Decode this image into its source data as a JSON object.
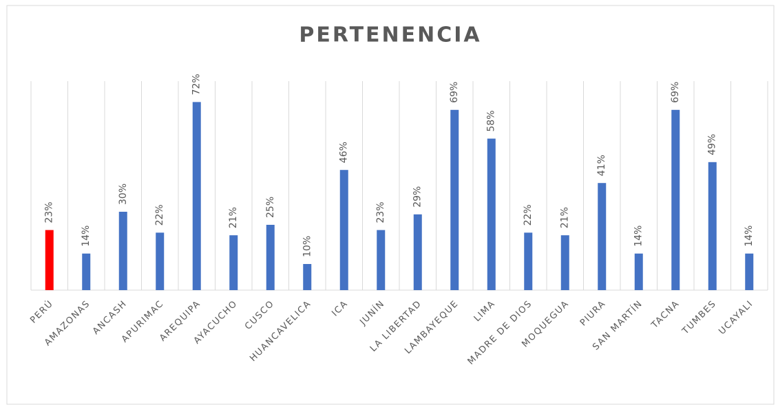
{
  "chart_data": {
    "type": "bar",
    "title": "PERTENENCIA",
    "categories": [
      "PERÚ",
      "AMAZONAS",
      "ANCASH",
      "APURIMAC",
      "AREQUIPA",
      "AYACUCHO",
      "CUSCO",
      "HUANCAVELICA",
      "ICA",
      "JUNÍN",
      "LA LIBERTAD",
      "LAMBAYEQUE",
      "LIMA",
      "MADRE DE DIOS",
      "MOQUEGUA",
      "PIURA",
      "SAN MARTÍN",
      "TACNA",
      "TUMBES",
      "UCAYALI"
    ],
    "values": [
      23,
      14,
      30,
      22,
      72,
      21,
      25,
      10,
      46,
      23,
      29,
      69,
      58,
      22,
      21,
      41,
      14,
      69,
      49,
      14
    ],
    "value_labels": [
      "23%",
      "14%",
      "30%",
      "22%",
      "72%",
      "21%",
      "25%",
      "10%",
      "46%",
      "23%",
      "29%",
      "69%",
      "58%",
      "22%",
      "21%",
      "41%",
      "14%",
      "69%",
      "49%",
      "14%"
    ],
    "colors": [
      "#ff0000",
      "#4472c4",
      "#4472c4",
      "#4472c4",
      "#4472c4",
      "#4472c4",
      "#4472c4",
      "#4472c4",
      "#4472c4",
      "#4472c4",
      "#4472c4",
      "#4472c4",
      "#4472c4",
      "#4472c4",
      "#4472c4",
      "#4472c4",
      "#4472c4",
      "#4472c4",
      "#4472c4",
      "#4472c4"
    ],
    "ylim": [
      0,
      80
    ]
  }
}
